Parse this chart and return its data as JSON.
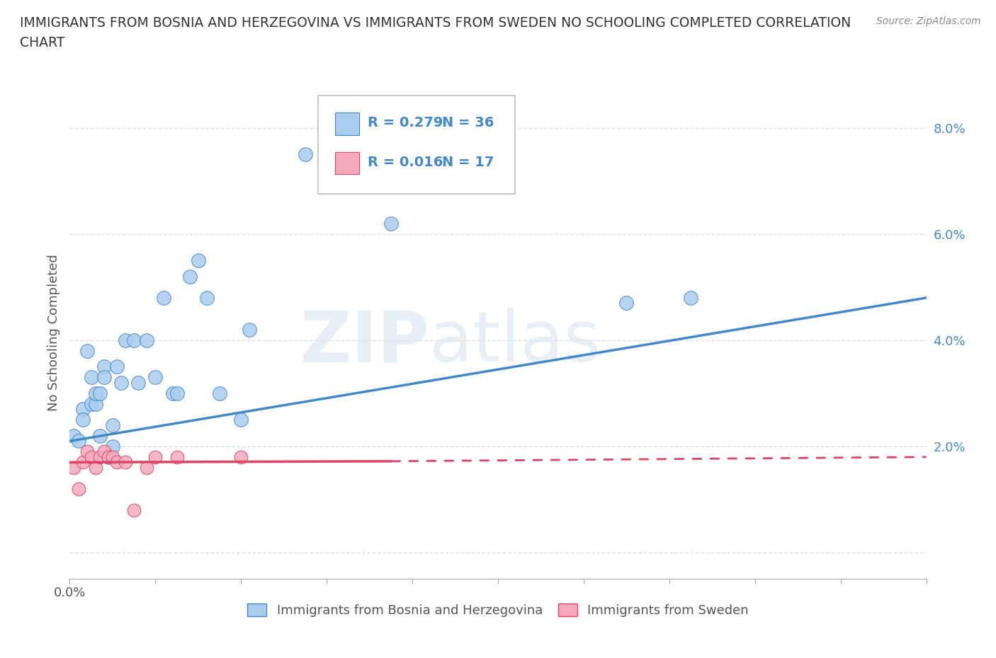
{
  "title_line1": "IMMIGRANTS FROM BOSNIA AND HERZEGOVINA VS IMMIGRANTS FROM SWEDEN NO SCHOOLING COMPLETED CORRELATION",
  "title_line2": "CHART",
  "source": "Source: ZipAtlas.com",
  "ylabel": "No Schooling Completed",
  "xlim": [
    0.0,
    0.2
  ],
  "ylim": [
    -0.005,
    0.088
  ],
  "legend_r1": "R = 0.279",
  "legend_n1": "N = 36",
  "legend_r2": "R = 0.016",
  "legend_n2": "N = 17",
  "color_bosnia": "#aaccee",
  "color_sweden": "#f4aabb",
  "line_color_bosnia": "#4488cc",
  "line_color_sweden": "#dd4466",
  "watermark_zip": "ZIP",
  "watermark_atlas": "atlas",
  "background_color": "#ffffff",
  "bosnia_x": [
    0.001,
    0.002,
    0.003,
    0.003,
    0.004,
    0.005,
    0.005,
    0.006,
    0.006,
    0.007,
    0.007,
    0.008,
    0.008,
    0.009,
    0.01,
    0.01,
    0.011,
    0.012,
    0.013,
    0.015,
    0.016,
    0.018,
    0.02,
    0.022,
    0.024,
    0.025,
    0.028,
    0.03,
    0.032,
    0.035,
    0.04,
    0.042,
    0.055,
    0.075,
    0.13,
    0.145
  ],
  "bosnia_y": [
    0.022,
    0.021,
    0.027,
    0.025,
    0.038,
    0.028,
    0.033,
    0.028,
    0.03,
    0.03,
    0.022,
    0.035,
    0.033,
    0.018,
    0.024,
    0.02,
    0.035,
    0.032,
    0.04,
    0.04,
    0.032,
    0.04,
    0.033,
    0.048,
    0.03,
    0.03,
    0.052,
    0.055,
    0.048,
    0.03,
    0.025,
    0.042,
    0.075,
    0.062,
    0.047,
    0.048
  ],
  "sweden_x": [
    0.001,
    0.002,
    0.003,
    0.004,
    0.005,
    0.006,
    0.007,
    0.008,
    0.009,
    0.01,
    0.011,
    0.013,
    0.015,
    0.018,
    0.02,
    0.025,
    0.04
  ],
  "sweden_y": [
    0.016,
    0.012,
    0.017,
    0.019,
    0.018,
    0.016,
    0.018,
    0.019,
    0.018,
    0.018,
    0.017,
    0.017,
    0.008,
    0.016,
    0.018,
    0.018,
    0.018
  ],
  "grid_color": "#dddddd",
  "dot_size_bosnia": 200,
  "dot_size_sweden": 180,
  "regline_bosnia_x0": 0.0,
  "regline_bosnia_y0": 0.021,
  "regline_bosnia_x1": 0.2,
  "regline_bosnia_y1": 0.048,
  "regline_sweden_x0": 0.0,
  "regline_sweden_y0": 0.017,
  "regline_sweden_x1": 0.2,
  "regline_sweden_y1": 0.018
}
